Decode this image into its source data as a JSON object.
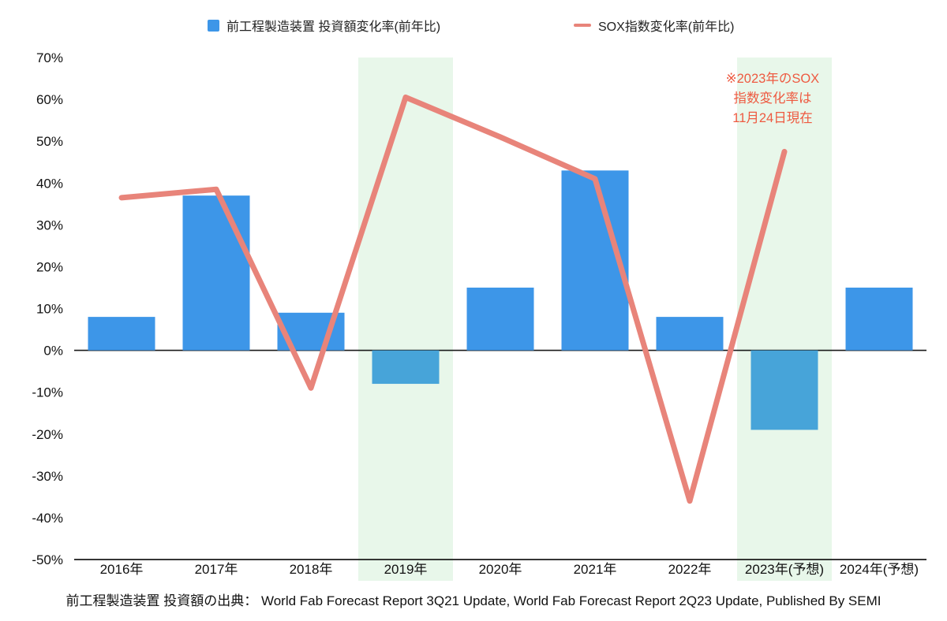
{
  "legend": {
    "bar_label": "前工程製造装置 投資額変化率(前年比)",
    "line_label": "SOX指数変化率(前年比)"
  },
  "annotation": {
    "lines": [
      "※2023年のSOX",
      "指数変化率は",
      "11月24日現在"
    ],
    "color": "#ee5a41"
  },
  "footer": "前工程製造装置 投資額の出典： World Fab Forecast Report 3Q21 Update, World Fab Forecast Report 2Q23 Update, Published By SEMI",
  "chart_data": {
    "type": "bar",
    "subtype": "bar+line combo",
    "categories": [
      "2016年",
      "2017年",
      "2018年",
      "2019年",
      "2020年",
      "2021年",
      "2022年",
      "2023年(予想)",
      "2024年(予想)"
    ],
    "series": [
      {
        "name": "前工程製造装置 投資額変化率(前年比)",
        "type": "bar",
        "values": [
          8,
          37,
          9,
          -8,
          15,
          43,
          8,
          -19,
          15
        ]
      },
      {
        "name": "SOX指数変化率(前年比)",
        "type": "line",
        "values": [
          36.5,
          38.5,
          -9,
          60.5,
          51,
          41,
          -36,
          47.5,
          null
        ]
      }
    ],
    "title": "",
    "xlabel": "",
    "ylabel": "",
    "ylim": [
      -50,
      70
    ],
    "ytick_step": 10,
    "ytick_format": "percent",
    "grid": false,
    "legend_position": "top",
    "highlighted_categories": [
      "2019年",
      "2023年(予想)"
    ],
    "colors": {
      "bar_positive": "#3d96e8",
      "bar_negative": "#47a4d9",
      "line": "#e8847a",
      "highlight_band": "#e8f7ea",
      "axis": "#1a1a1a",
      "tick_text": "#111111"
    }
  }
}
